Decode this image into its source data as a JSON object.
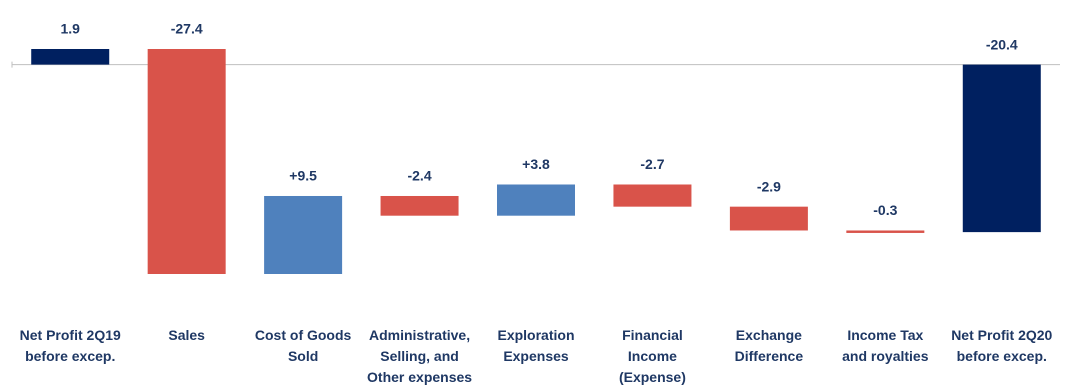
{
  "chart_data": {
    "type": "waterfall",
    "categories": [
      "Net Profit 2Q19\nbefore excep.",
      "Sales",
      "Cost of Goods\nSold",
      "Administrative,\nSelling, and\nOther expenses",
      "Exploration\nExpenses",
      "Financial\nIncome\n(Expense)",
      "Exchange\nDifference",
      "Income Tax\nand royalties",
      "Net Profit 2Q20\nbefore excep."
    ],
    "values": [
      1.9,
      -27.4,
      9.5,
      -2.4,
      3.8,
      -2.7,
      -2.9,
      -0.3,
      -20.4
    ],
    "value_labels": [
      "1.9",
      "-27.4",
      "+9.5",
      "-2.4",
      "+3.8",
      "-2.7",
      "-2.9",
      "-0.3",
      "-20.4"
    ],
    "measures": [
      "absolute",
      "relative",
      "relative",
      "relative",
      "relative",
      "relative",
      "relative",
      "relative",
      "total"
    ],
    "colors": {
      "total": "#002060",
      "increase": "#4f81bd",
      "decrease": "#d9534a"
    }
  }
}
